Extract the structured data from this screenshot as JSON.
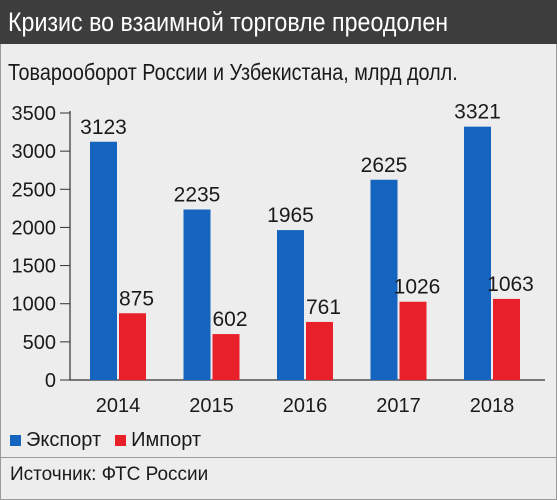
{
  "header": {
    "title": "Кризис во взаимной торговле преодолен"
  },
  "chart_data": {
    "type": "bar",
    "title": "Товарооборот России и Узбекистана, млрд долл.",
    "categories": [
      "2014",
      "2015",
      "2016",
      "2017",
      "2018"
    ],
    "series": [
      {
        "name": "Экспорт",
        "values": [
          3123,
          2235,
          1965,
          2625,
          3321
        ],
        "color": "#1565c0"
      },
      {
        "name": "Импорт",
        "values": [
          875,
          602,
          761,
          1026,
          1063
        ],
        "color": "#e8202a"
      }
    ],
    "ylim": [
      0,
      3500
    ],
    "yticks": [
      0,
      500,
      1000,
      1500,
      2000,
      2500,
      3000,
      3500
    ],
    "grid": false,
    "legend": "bottom-left"
  },
  "footer": {
    "source": "Источник: ФТС России"
  }
}
